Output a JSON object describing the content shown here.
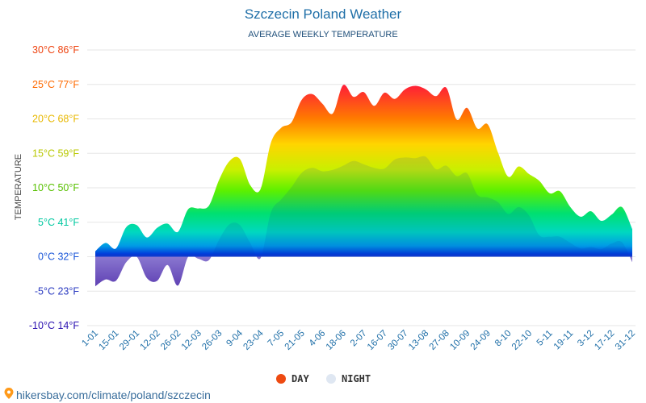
{
  "chart_data": {
    "type": "area",
    "title": "Szczecin Poland Weather",
    "subtitle": "AVERAGE WEEKLY TEMPERATURE",
    "ylabel": "TEMPERATURE",
    "ylim": [
      -10,
      30
    ],
    "yticks": [
      {
        "value": 30,
        "label": "30°C 86°F",
        "color": "#ee4411"
      },
      {
        "value": 25,
        "label": "25°C 77°F",
        "color": "#ff6a00"
      },
      {
        "value": 20,
        "label": "20°C 68°F",
        "color": "#e8b800"
      },
      {
        "value": 15,
        "label": "15°C 59°F",
        "color": "#b8c800"
      },
      {
        "value": 10,
        "label": "10°C 50°F",
        "color": "#58c000"
      },
      {
        "value": 5,
        "label": "5°C 41°F",
        "color": "#00c8a0"
      },
      {
        "value": 0,
        "label": "0°C 32°F",
        "color": "#1a56d8"
      },
      {
        "value": -5,
        "label": "-5°C 23°F",
        "color": "#2a3ac0"
      },
      {
        "value": -10,
        "label": "-10°C 14°F",
        "color": "#2a10b0"
      }
    ],
    "x_labels": [
      "1-01",
      "15-01",
      "29-01",
      "12-02",
      "26-02",
      "12-03",
      "26-03",
      "9-04",
      "23-04",
      "7-05",
      "21-05",
      "4-06",
      "18-06",
      "2-07",
      "16-07",
      "30-07",
      "13-08",
      "27-08",
      "10-09",
      "24-09",
      "8-10",
      "22-10",
      "5-11",
      "19-11",
      "3-12",
      "17-12",
      "31-12"
    ],
    "series": [
      {
        "name": "DAY",
        "color": "#ee4a11",
        "values": [
          0.8,
          2.0,
          1.2,
          4.3,
          4.6,
          2.8,
          4.2,
          4.8,
          3.6,
          6.9,
          7.0,
          7.4,
          11.2,
          13.9,
          14.2,
          10.4,
          9.8,
          16.5,
          18.7,
          19.5,
          22.8,
          23.6,
          22.2,
          20.8,
          24.9,
          23.2,
          23.9,
          21.9,
          23.8,
          22.9,
          24.3,
          24.8,
          24.3,
          23.3,
          24.5,
          19.9,
          21.6,
          18.6,
          19.2,
          15.1,
          11.6,
          13.1,
          12.0,
          11.0,
          9.2,
          9.5,
          7.2,
          5.8,
          6.6,
          5.2,
          6.1,
          7.2,
          4.0
        ]
      },
      {
        "name": "NIGHT",
        "color": "#dfe7f2",
        "values": [
          -4.3,
          -3.3,
          -3.5,
          -0.8,
          0.0,
          -3.1,
          -3.5,
          -1.2,
          -4.2,
          0.0,
          -0.3,
          -0.5,
          2.5,
          4.7,
          4.6,
          2.0,
          -0.2,
          6.4,
          8.3,
          10.1,
          12.2,
          12.9,
          12.4,
          12.6,
          13.2,
          13.9,
          13.4,
          12.9,
          12.8,
          14.1,
          14.4,
          14.3,
          14.5,
          12.7,
          13.2,
          11.7,
          12.1,
          9.0,
          8.6,
          7.9,
          6.2,
          7.2,
          6.0,
          3.1,
          2.9,
          2.9,
          2.0,
          1.2,
          1.4,
          1.1,
          1.9,
          2.1,
          -0.8
        ]
      }
    ],
    "legend": {
      "position": "bottom",
      "items": [
        {
          "label": "DAY",
          "color": "#ee4a11"
        },
        {
          "label": "NIGHT",
          "color": "#dfe7f2"
        }
      ]
    },
    "source": "hikersbay.com/climate/poland/szczecin"
  },
  "icons": {
    "pin": "location-pin-icon"
  }
}
